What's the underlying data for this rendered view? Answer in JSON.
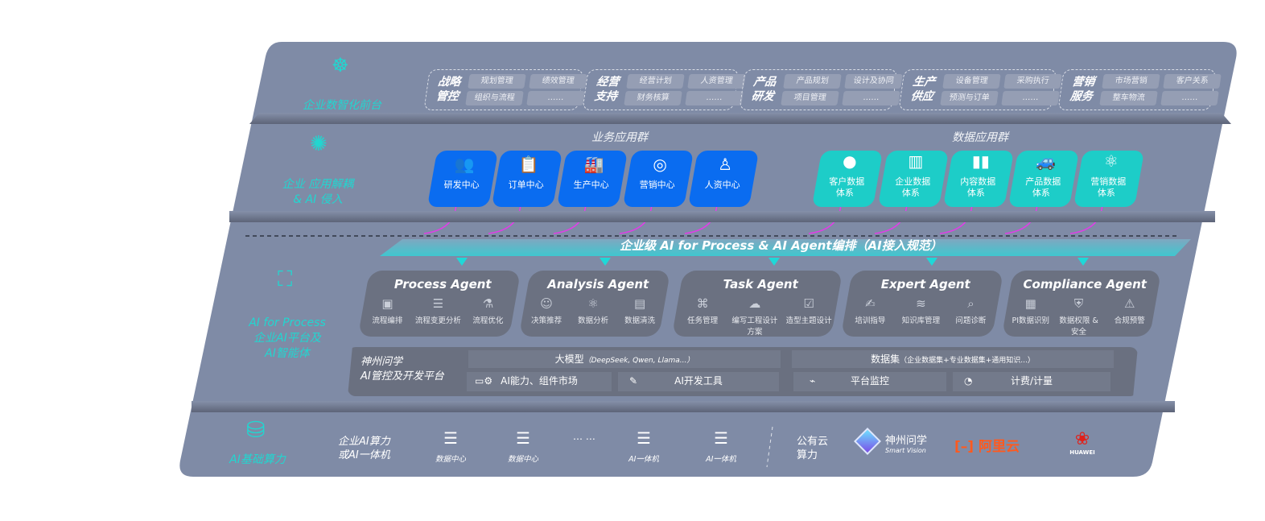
{
  "colors": {
    "panel": "#7f8ba6",
    "accent_cyan": "#22d6d0",
    "business_card": "#0a6cf0",
    "data_card": "#1dcdc8",
    "connector": "#e23ce8",
    "aliyun": "#ff5a1f",
    "huawei": "#e0211b"
  },
  "layers": {
    "frontend": {
      "label": "企业数智化前台",
      "icon": "brain-icon"
    },
    "apps": {
      "label_line1": "企业 应用解耦",
      "label_line2": "& AI 侵入",
      "icon": "molecule-icon"
    },
    "ai": {
      "label_line1": "AI for Process",
      "label_line2": "企业AI平台及",
      "label_line3": "AI智能体",
      "icon": "face-scan-icon"
    },
    "compute": {
      "label": "AI基础算力",
      "icon": "database-icon"
    }
  },
  "domains": [
    {
      "title1": "战略",
      "title2": "管控",
      "chips": [
        "规划管理",
        "绩效管理",
        "组织与流程",
        "……"
      ]
    },
    {
      "title1": "经营",
      "title2": "支持",
      "chips": [
        "经营计划",
        "人资管理",
        "财务核算",
        "……"
      ]
    },
    {
      "title1": "产品",
      "title2": "研发",
      "chips": [
        "产品规划",
        "设计及协同",
        "项目管理",
        "……"
      ]
    },
    {
      "title1": "生产",
      "title2": "供应",
      "chips": [
        "设备管理",
        "采购执行",
        "预测与订单",
        "……"
      ]
    },
    {
      "title1": "营销",
      "title2": "服务",
      "chips": [
        "市场营销",
        "客户关系",
        "整车物流",
        "……"
      ]
    }
  ],
  "business_apps": {
    "title": "业务应用群",
    "items": [
      {
        "label": "研发中心",
        "icon": "team-icon"
      },
      {
        "label": "订单中心",
        "icon": "clipboard-icon"
      },
      {
        "label": "生产中心",
        "icon": "factory-icon"
      },
      {
        "label": "营销中心",
        "icon": "target-icon"
      },
      {
        "label": "人资中心",
        "icon": "person-icon"
      }
    ]
  },
  "data_apps": {
    "title": "数据应用群",
    "items": [
      {
        "label1": "客户数据",
        "label2": "体系",
        "icon": "user-icon"
      },
      {
        "label1": "企业数据",
        "label2": "体系",
        "icon": "building-icon"
      },
      {
        "label1": "内容数据",
        "label2": "体系",
        "icon": "books-icon"
      },
      {
        "label1": "产品数据",
        "label2": "体系",
        "icon": "car-icon"
      },
      {
        "label1": "营销数据",
        "label2": "体系",
        "icon": "atom-icon"
      }
    ]
  },
  "banner": "企业级 AI for Process & AI Agent编排（AI接入规范）",
  "agents": [
    {
      "title": "Process Agent",
      "items": [
        {
          "label": "流程编排",
          "icon": "chart-window-icon"
        },
        {
          "label": "流程变更分析",
          "icon": "list-icon"
        },
        {
          "label": "流程优化",
          "icon": "optimize-icon"
        }
      ]
    },
    {
      "title": "Analysis Agent",
      "items": [
        {
          "label": "决策推荐",
          "icon": "head-icon"
        },
        {
          "label": "数据分析",
          "icon": "atom-icon"
        },
        {
          "label": "数据清洗",
          "icon": "document-icon"
        }
      ]
    },
    {
      "title": "Task Agent",
      "items": [
        {
          "label": "任务管理",
          "icon": "network-icon"
        },
        {
          "label": "编写工程设计方案",
          "icon": "cloud-icon"
        },
        {
          "label": "造型主题设计",
          "icon": "checklist-icon"
        }
      ]
    },
    {
      "title": "Expert Agent",
      "items": [
        {
          "label": "培训指导",
          "icon": "teach-icon"
        },
        {
          "label": "知识库管理",
          "icon": "layers-icon"
        },
        {
          "label": "问题诊断",
          "icon": "diagnose-icon"
        }
      ]
    },
    {
      "title": "Compliance Agent",
      "items": [
        {
          "label": "PI数据识别",
          "icon": "id-card-icon"
        },
        {
          "label": "数据权限 & 安全",
          "icon": "shield-icon"
        },
        {
          "label": "合规预警",
          "icon": "alert-icon"
        }
      ]
    }
  ],
  "platform": {
    "name_line1": "神州问学",
    "name_line2": "AI管控及开发平台",
    "llm_title": "大模型",
    "llm_detail": "（DeepSeek, Qwen, Llama...）",
    "dataset_title": "数据集",
    "dataset_detail": "（企业数据集+专业数据集+通用知识...）",
    "market": "AI能力、组件市场",
    "devtools": "AI开发工具",
    "monitor": "平台监控",
    "billing": "计费/计量"
  },
  "compute": {
    "private_line1": "企业AI算力",
    "private_line2": "或AI一体机",
    "servers": [
      "数据中心",
      "数据中心",
      "AI一体机",
      "AI一体机"
    ],
    "ellipsis": "… …",
    "public_line1": "公有云",
    "public_line2": "算力",
    "vendors": {
      "smartvision_cn": "神州问学",
      "smartvision_en": "Smart Vision",
      "aliyun": "阿里云",
      "huawei": "HUAWEI"
    }
  }
}
